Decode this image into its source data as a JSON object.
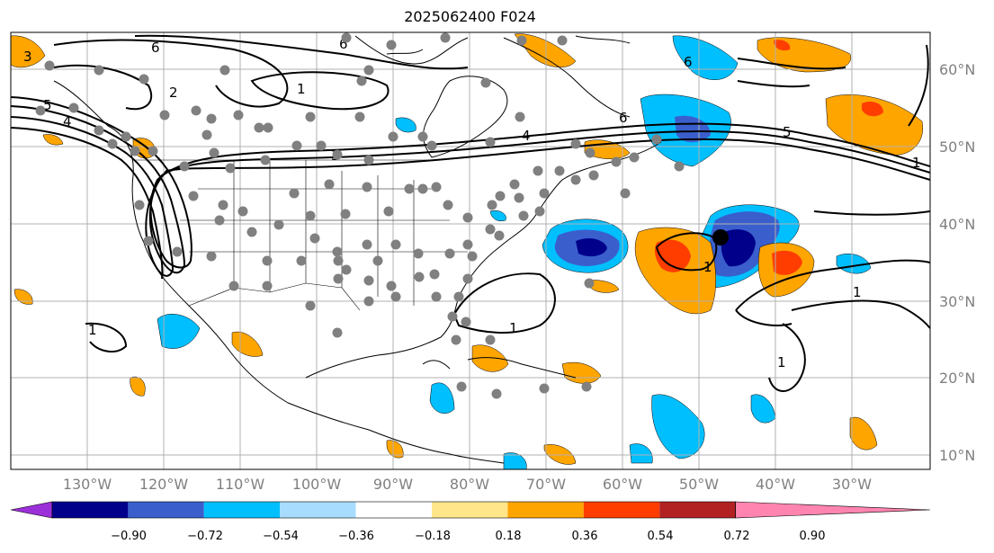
{
  "title": "2025062400 F024",
  "lat_labels": [
    "60°N",
    "50°N",
    "40°N",
    "30°N",
    "20°N",
    "10°N"
  ],
  "lon_labels": [
    "130°W",
    "120°W",
    "110°W",
    "100°W",
    "90°W",
    "80°W",
    "70°W",
    "60°W",
    "50°W",
    "40°W",
    "30°W"
  ],
  "colorbar": {
    "ticks": [
      "−0.90",
      "−0.72",
      "−0.54",
      "−0.36",
      "−0.18",
      "0.18",
      "0.36",
      "0.54",
      "0.72",
      "0.90"
    ],
    "colors": [
      "#9b30d8",
      "#00008b",
      "#3a5fcd",
      "#00bfff",
      "#a8dcff",
      "#ffffff",
      "#ffe68a",
      "#ffa500",
      "#ff3d00",
      "#b22222",
      "#ff85b0"
    ]
  },
  "contour_labels": [
    "3",
    "6",
    "5",
    "4",
    "2",
    "6",
    "3",
    "1",
    "6",
    "4",
    "6",
    "1",
    "5",
    "1",
    "1",
    "1",
    "1",
    "1"
  ],
  "station_dots": 110,
  "marker": "center-point"
}
